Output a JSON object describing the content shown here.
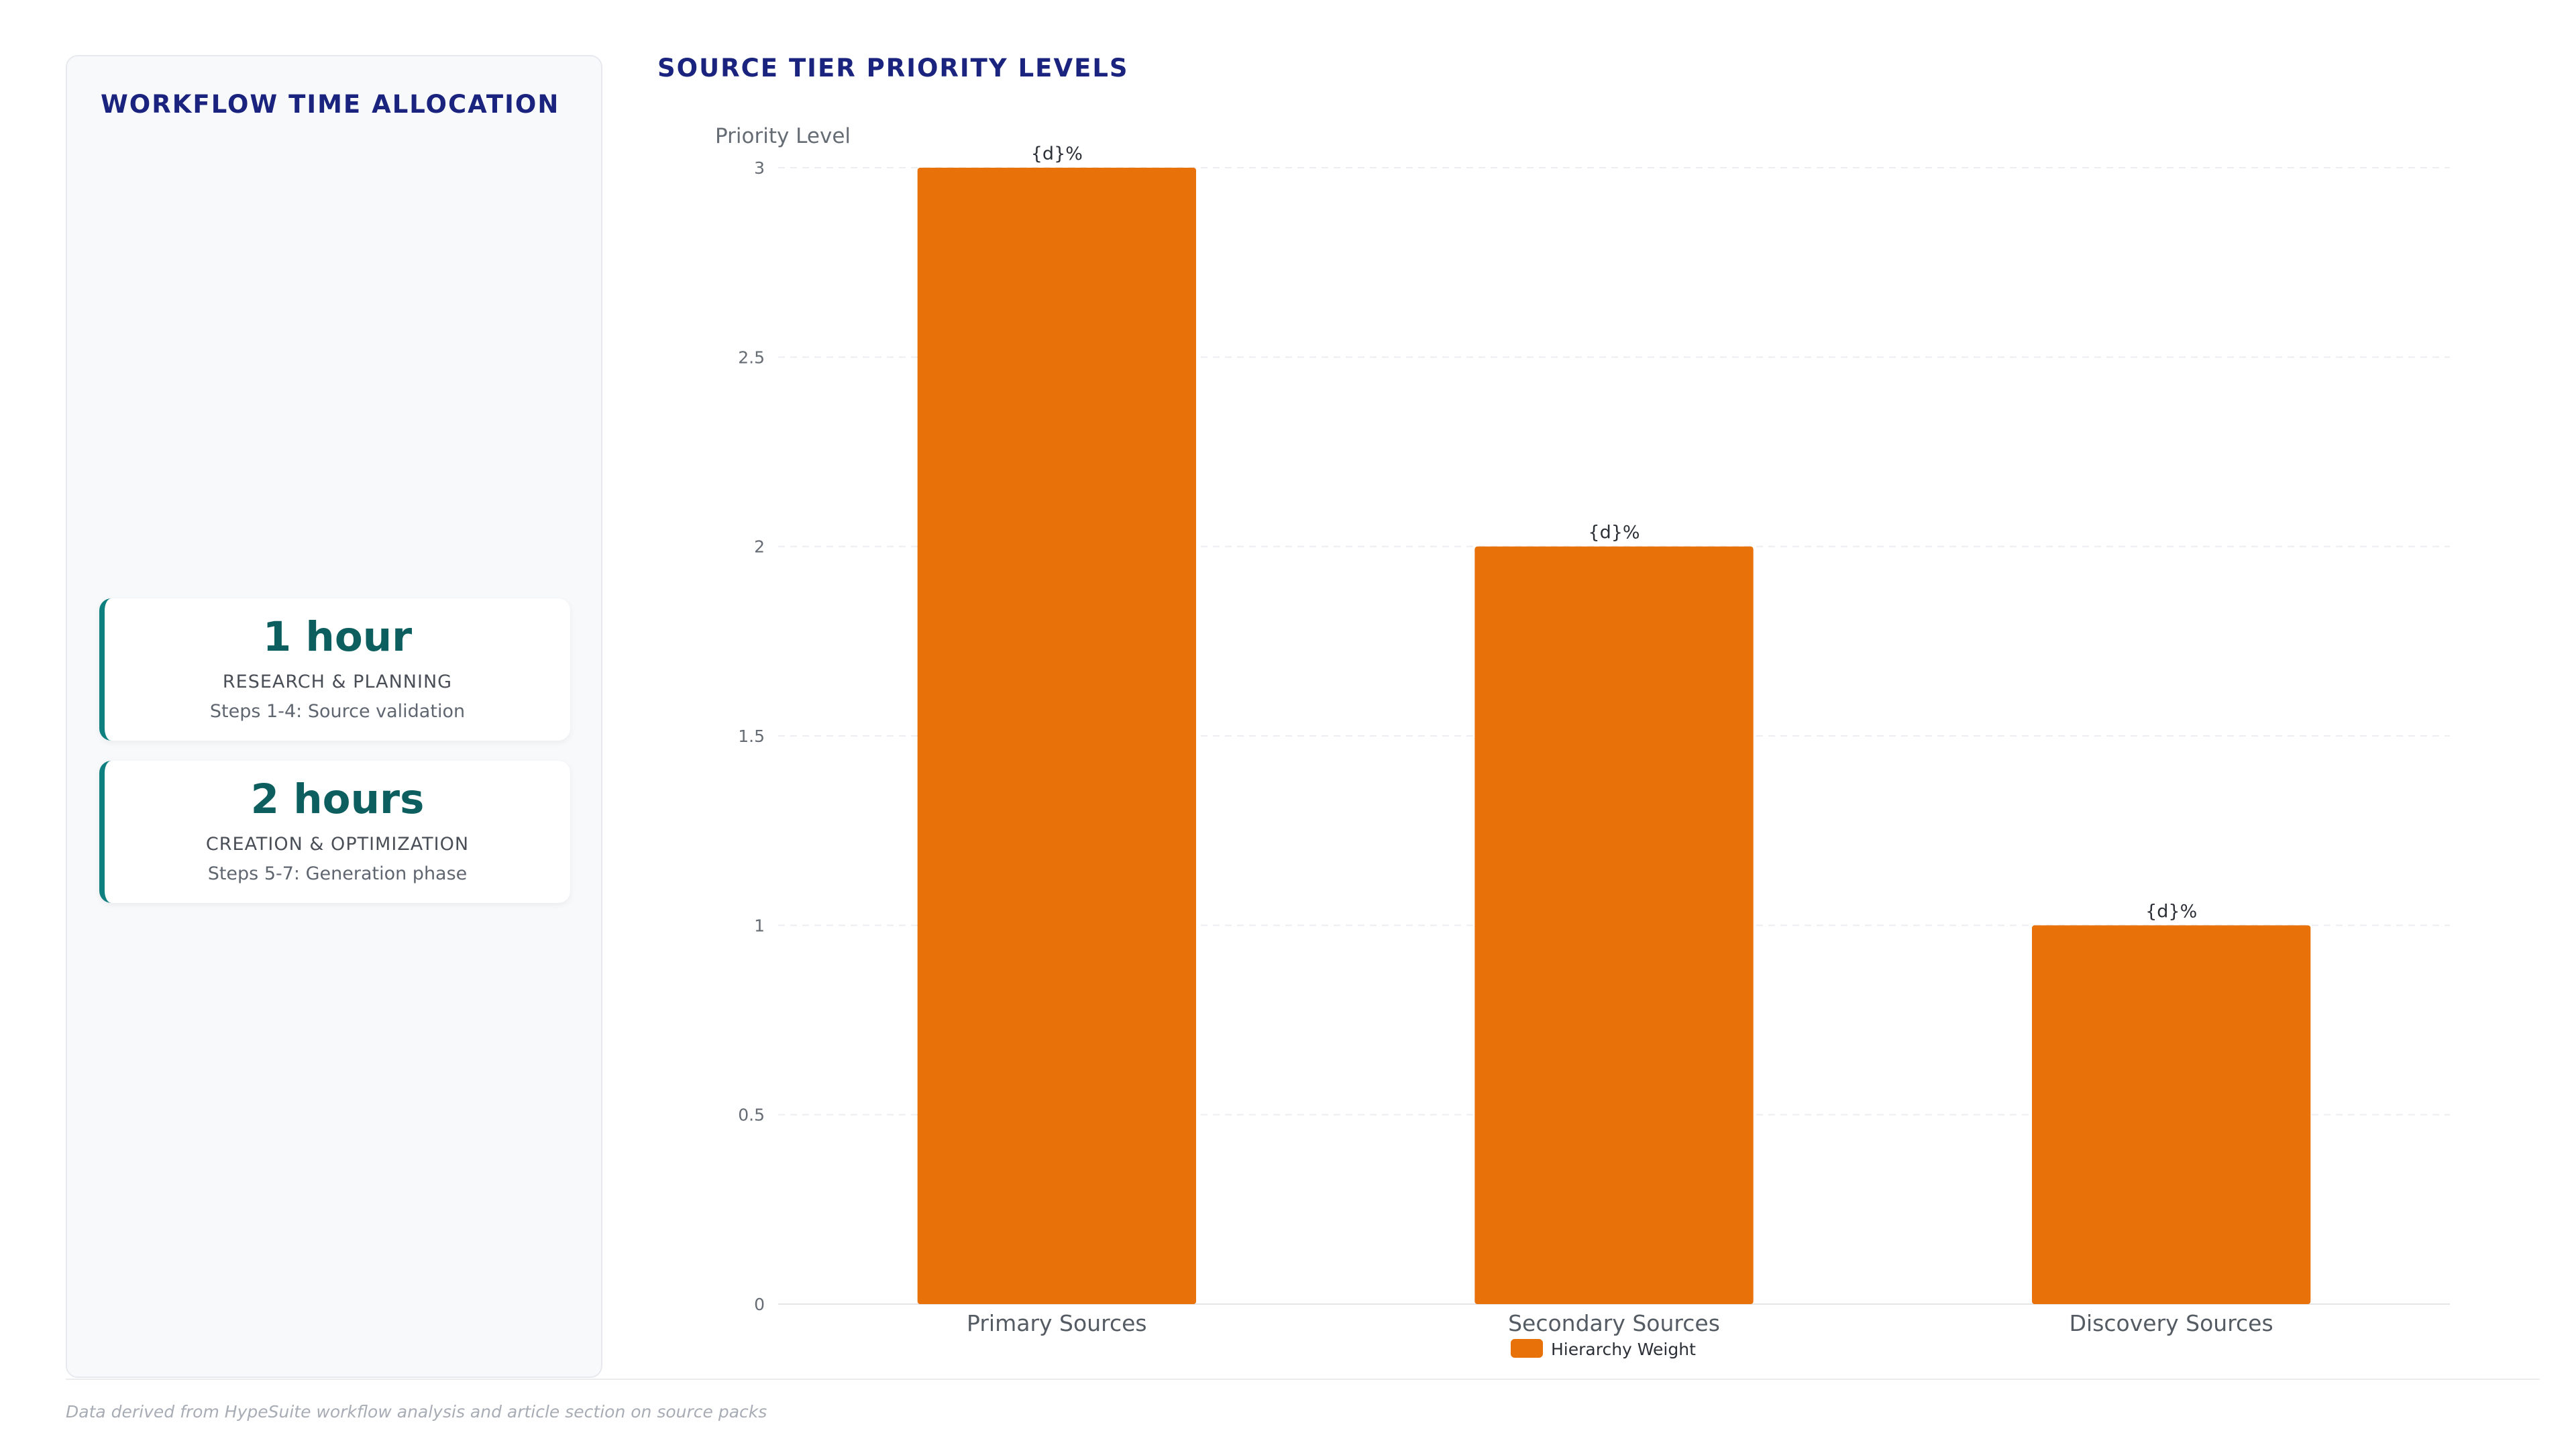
{
  "left_panel": {
    "title": "WORKFLOW TIME ALLOCATION",
    "cards": [
      {
        "value": "1 hour",
        "label": "RESEARCH & PLANNING",
        "sub": "Steps 1-4: Source validation"
      },
      {
        "value": "2 hours",
        "label": "CREATION & OPTIMIZATION",
        "sub": "Steps 5-7: Generation phase"
      }
    ]
  },
  "chart_data": {
    "type": "bar",
    "title": "SOURCE TIER PRIORITY LEVELS",
    "categories": [
      "Primary Sources",
      "Secondary Sources",
      "Discovery Sources"
    ],
    "series": [
      {
        "name": "Hierarchy Weight",
        "values": [
          3,
          2,
          1
        ],
        "color": "#e8710a"
      }
    ],
    "data_labels": [
      "{d}%",
      "{d}%",
      "{d}%"
    ],
    "ylabel": "Priority Level",
    "xlabel": "",
    "ylim": [
      0,
      3
    ],
    "yticks": [
      "0",
      "0.5",
      "1",
      "1.5",
      "2",
      "2.5",
      "3"
    ],
    "grid": true,
    "legend": "bottom-center"
  },
  "footnote": "Data derived from HypeSuite workflow analysis and article section on source packs"
}
